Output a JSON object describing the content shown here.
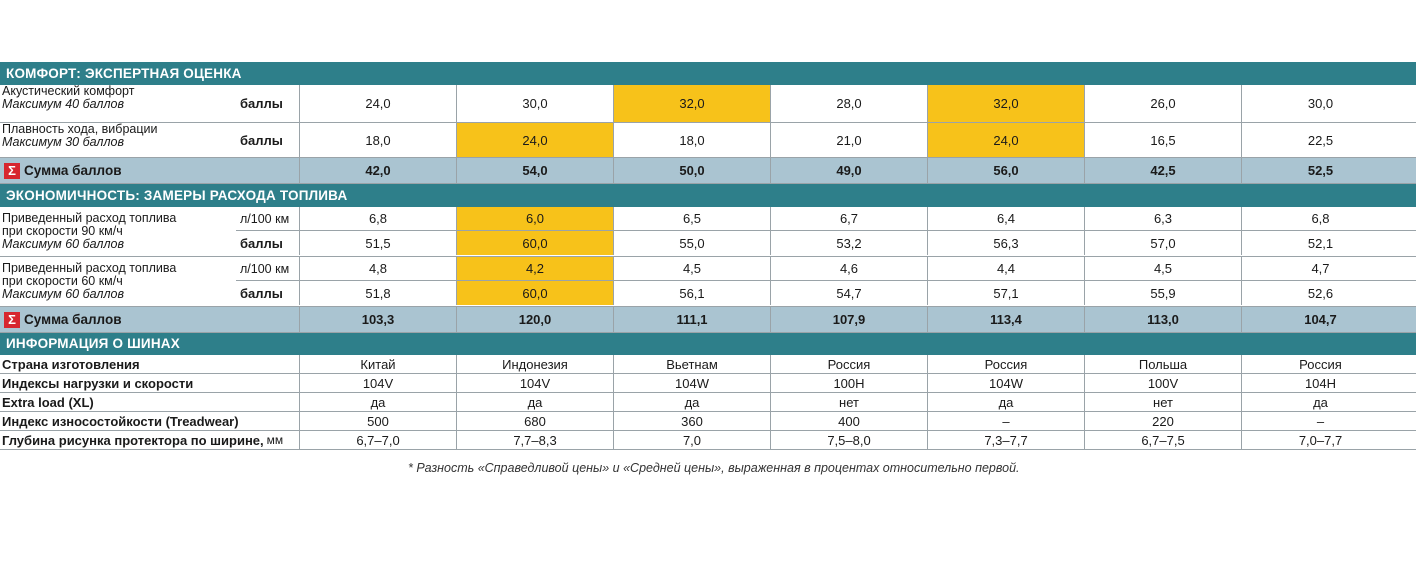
{
  "comfort": {
    "header": "КОМФОРТ: ЭКСПЕРТНАЯ ОЦЕНКА",
    "rows": [
      {
        "label": "Акустический комфорт",
        "sub": "Максимум 40 баллов",
        "unit": "баллы",
        "values": [
          "24,0",
          "30,0",
          "32,0",
          "28,0",
          "32,0",
          "26,0",
          "30,0"
        ]
      },
      {
        "label": "Плавность хода, вибрации",
        "sub": "Максимум 30 баллов",
        "unit": "баллы",
        "values": [
          "18,0",
          "24,0",
          "18,0",
          "21,0",
          "24,0",
          "16,5",
          "22,5"
        ]
      }
    ],
    "sum_label": "Сумма баллов",
    "sum_values": [
      "42,0",
      "54,0",
      "50,0",
      "49,0",
      "56,0",
      "42,5",
      "52,5"
    ]
  },
  "economy": {
    "header": "ЭКОНОМИЧНОСТЬ: ЗАМЕРЫ РАСХОДА ТОПЛИВА",
    "groups": [
      {
        "label1": "Приведенный расход топлива",
        "label2": "при скорости 90 км/ч",
        "sub": "Максимум 60 баллов",
        "unit1": "л/100 км",
        "values1": [
          "6,8",
          "6,0",
          "6,5",
          "6,7",
          "6,4",
          "6,3",
          "6,8"
        ],
        "unit2": "баллы",
        "values2": [
          "51,5",
          "60,0",
          "55,0",
          "53,2",
          "56,3",
          "57,0",
          "52,1"
        ]
      },
      {
        "label1": "Приведенный расход топлива",
        "label2": "при скорости 60 км/ч",
        "sub": "Максимум 60 баллов",
        "unit1": "л/100 км",
        "values1": [
          "4,8",
          "4,2",
          "4,5",
          "4,6",
          "4,4",
          "4,5",
          "4,7"
        ],
        "unit2": "баллы",
        "values2": [
          "51,8",
          "60,0",
          "56,1",
          "54,7",
          "57,1",
          "55,9",
          "52,6"
        ]
      }
    ],
    "sum_label": "Сумма баллов",
    "sum_values": [
      "103,3",
      "120,0",
      "111,1",
      "107,9",
      "113,4",
      "113,0",
      "104,7"
    ]
  },
  "tires": {
    "header": "ИНФОРМАЦИЯ О ШИНАХ",
    "rows": [
      {
        "label": "Страна изготовления",
        "unit": "",
        "values": [
          "Китай",
          "Индонезия",
          "Вьетнам",
          "Россия",
          "Россия",
          "Польша",
          "Россия"
        ]
      },
      {
        "label": "Индексы нагрузки и скорости",
        "unit": "",
        "values": [
          "104V",
          "104V",
          "104W",
          "100H",
          "104W",
          "100V",
          "104H"
        ]
      },
      {
        "label": "Extra load (XL)",
        "unit": "",
        "values": [
          "да",
          "да",
          "да",
          "нет",
          "да",
          "нет",
          "да"
        ]
      },
      {
        "label": "Индекс износостойкости (Treadwear)",
        "unit": "",
        "values": [
          "500",
          "680",
          "360",
          "400",
          "–",
          "220",
          "–"
        ]
      },
      {
        "label": "Глубина рисунка протектора по ширине,",
        "unit": "мм",
        "values": [
          "6,7–7,0",
          "7,7–8,3",
          "7,0",
          "7,5–8,0",
          "7,3–7,7",
          "6,7–7,5",
          "7,0–7,7"
        ]
      }
    ]
  },
  "highlight_color": "#f7c21a",
  "sum_icon": "sigma-icon",
  "footnote": "* Разность «Справедливой цены» и «Средней цены», выраженная в процентах относительно первой."
}
